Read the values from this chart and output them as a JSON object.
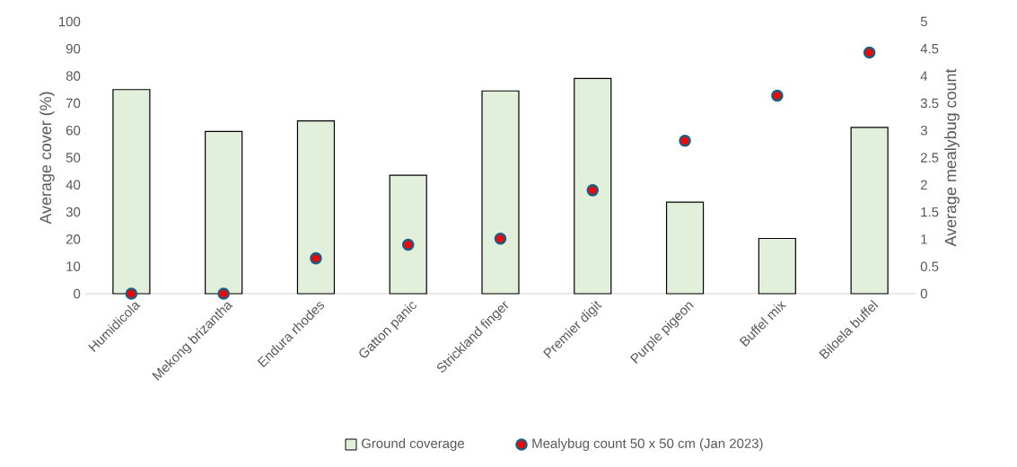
{
  "chart_data": {
    "type": "bar",
    "categories": [
      "Humidicola",
      "Mekong brizantha",
      "Endura rhodes",
      "Gatton panic",
      "Strickland finger",
      "Premier digit",
      "Purple pigeon",
      "Buffel mix",
      "Biloela buffel"
    ],
    "series": [
      {
        "name": "Ground coverage",
        "color": "#e2efda",
        "values": [
          75.0,
          59.6,
          63.5,
          43.5,
          74.5,
          79.1,
          33.6,
          20.3,
          61.1
        ]
      },
      {
        "name": "Mealybug count 50 x 50 cm (Jan 2023)",
        "type": "scatter",
        "axis": "y2",
        "color": "#ff0000",
        "marker": "circle",
        "values": [
          0,
          0,
          0.65,
          0.9,
          1.01,
          1.9,
          2.81,
          3.64,
          4.43
        ]
      }
    ],
    "ylabel": "Average cover (%)",
    "y2label": "Average mealybug count",
    "ylim": [
      0,
      100
    ],
    "yticks": [
      0,
      10,
      20,
      30,
      40,
      50,
      60,
      70,
      80,
      90,
      100
    ],
    "y2lim": [
      0,
      5
    ],
    "y2ticks": [
      0,
      0.5,
      1,
      1.5,
      2,
      2.5,
      3,
      3.5,
      4,
      4.5,
      5
    ],
    "legend": "bottom"
  }
}
